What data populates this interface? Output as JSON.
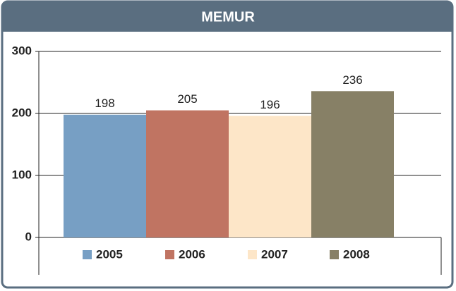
{
  "chart_data": {
    "type": "bar",
    "title": "MEMUR",
    "categories": [
      null
    ],
    "series": [
      {
        "name": "2005",
        "color": "#779fc4",
        "values": [
          198
        ]
      },
      {
        "name": "2006",
        "color": "#c07462",
        "values": [
          205
        ]
      },
      {
        "name": "2007",
        "color": "#fde6c8",
        "values": [
          196
        ]
      },
      {
        "name": "2008",
        "color": "#878066",
        "values": [
          236
        ]
      }
    ],
    "ylim": [
      0,
      300
    ],
    "yticks": [
      0,
      100,
      200,
      300
    ],
    "grid": true
  }
}
